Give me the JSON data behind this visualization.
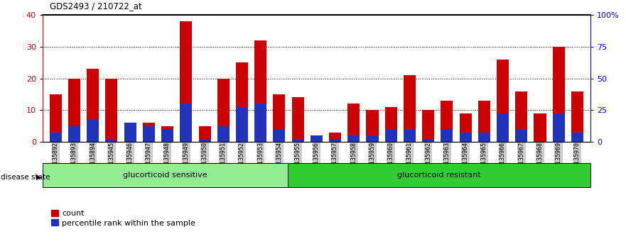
{
  "title": "GDS2493 / 210722_at",
  "samples": [
    "GSM135892",
    "GSM135893",
    "GSM135894",
    "GSM135945",
    "GSM135946",
    "GSM135947",
    "GSM135948",
    "GSM135949",
    "GSM135950",
    "GSM135951",
    "GSM135952",
    "GSM135953",
    "GSM135954",
    "GSM135955",
    "GSM135956",
    "GSM135957",
    "GSM135958",
    "GSM135959",
    "GSM135960",
    "GSM135961",
    "GSM135962",
    "GSM135963",
    "GSM135964",
    "GSM135965",
    "GSM135966",
    "GSM135967",
    "GSM135968",
    "GSM135969",
    "GSM135970"
  ],
  "count_values": [
    15,
    20,
    23,
    20,
    6,
    6,
    5,
    38,
    5,
    20,
    25,
    32,
    15,
    14,
    2,
    3,
    12,
    10,
    11,
    21,
    10,
    13,
    9,
    13,
    26,
    16,
    9,
    30,
    16
  ],
  "percentile_values": [
    3,
    5,
    7,
    1,
    6,
    5,
    4,
    12,
    1,
    5,
    11,
    12,
    4,
    1,
    2,
    1,
    2,
    2,
    4,
    4,
    1,
    4,
    3,
    3,
    9,
    4,
    0,
    9,
    3
  ],
  "sensitive_count": 13,
  "group1_label": "glucorticoid sensitive",
  "group2_label": "glucorticoid resistant",
  "disease_state_label": "disease state",
  "bar_color_red": "#cc0000",
  "bar_color_blue": "#2233bb",
  "ylim_left": [
    0,
    40
  ],
  "ylim_right": [
    0,
    100
  ],
  "yticks_left": [
    0,
    10,
    20,
    30,
    40
  ],
  "yticks_right": [
    0,
    25,
    50,
    75,
    100
  ],
  "yticklabels_right": [
    "0",
    "25",
    "50",
    "75",
    "100%"
  ],
  "sensitive_bg": "#90ee90",
  "resistant_bg": "#32cd32",
  "xticklabel_bg": "#cccccc",
  "legend_count": "count",
  "legend_percentile": "percentile rank within the sample"
}
